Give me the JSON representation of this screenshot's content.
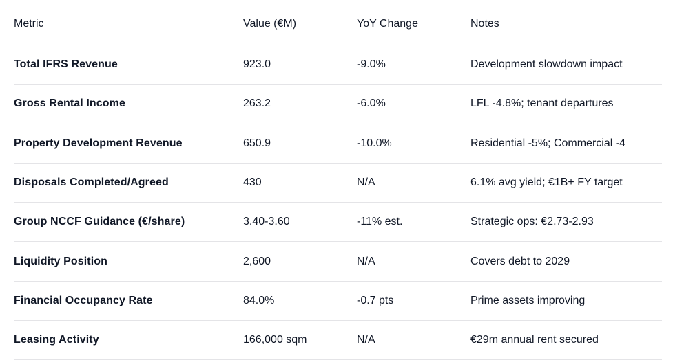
{
  "chart_data": {
    "type": "table",
    "title": "",
    "columns": [
      "Metric",
      "Value (€M)",
      "YoY Change",
      "Notes"
    ],
    "rows": [
      [
        "Total IFRS Revenue",
        "923.0",
        "-9.0%",
        "Development slowdown impact"
      ],
      [
        "Gross Rental Income",
        "263.2",
        "-6.0%",
        "LFL -4.8%; tenant departures"
      ],
      [
        "Property Development Revenue",
        "650.9",
        "-10.0%",
        "Residential -5%; Commercial -4"
      ],
      [
        "Disposals Completed/Agreed",
        "430",
        "N/A",
        "6.1% avg yield; €1B+ FY target"
      ],
      [
        "Group NCCF Guidance (€/share)",
        "3.40-3.60",
        "-11% est.",
        "Strategic ops: €2.73-2.93"
      ],
      [
        "Liquidity Position",
        "2,600",
        "N/A",
        "Covers debt to 2029"
      ],
      [
        "Financial Occupancy Rate",
        "84.0%",
        "-0.7 pts",
        "Prime assets improving"
      ],
      [
        "Leasing Activity",
        "166,000 sqm",
        "N/A",
        "€29m annual rent secured"
      ]
    ],
    "layout": {
      "grid": "horizontal row dividers only",
      "first_column_bold": true
    }
  },
  "colors": {
    "text": "#111827",
    "divider": "#e4e4e7",
    "background": "#ffffff"
  }
}
